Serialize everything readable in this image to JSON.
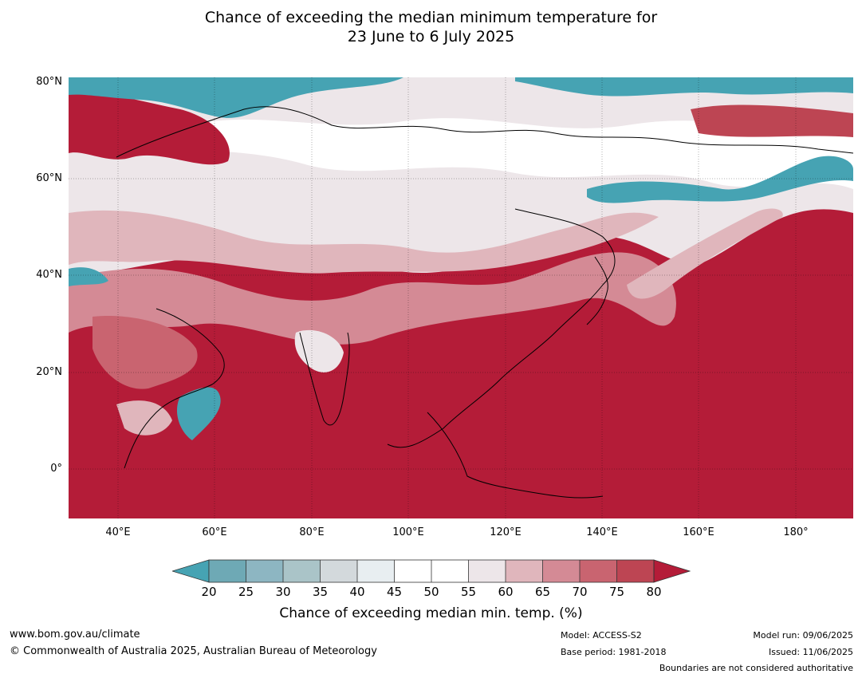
{
  "title": {
    "line1": "Chance of exceeding the median minimum temperature for",
    "line2": "23 June to 6 July 2025"
  },
  "map": {
    "lat_labels": [
      "80°N",
      "60°N",
      "40°N",
      "20°N",
      "0°"
    ],
    "lon_labels": [
      "40°E",
      "60°E",
      "80°E",
      "100°E",
      "120°E",
      "140°E",
      "160°E",
      "180°"
    ],
    "colors": {
      "c20": "#46a3b3",
      "c25": "#6ea9b5",
      "c30": "#8db6c2",
      "c35": "#aac4c8",
      "c40": "#d3d9dc",
      "c45": "#e8eef1",
      "c50": "#ffffff",
      "c55": "#ffffff",
      "c60": "#ede6e9",
      "c65": "#e0b6bc",
      "c70": "#d48a95",
      "c75": "#c96470",
      "c80": "#bd4553",
      "c_max": "#b41c38"
    }
  },
  "colorbar": {
    "ticks": [
      "20",
      "25",
      "30",
      "35",
      "40",
      "45",
      "50",
      "55",
      "60",
      "65",
      "70",
      "75",
      "80"
    ],
    "label": "Chance of exceeding median min. temp. (%)"
  },
  "footer": {
    "website": "www.bom.gov.au/climate",
    "copyright": "© Commonwealth of Australia 2025, Australian Bureau of Meteorology",
    "model": "Model: ACCESS-S2",
    "base_period": "Base period: 1981-2018",
    "model_run": "Model run: 09/06/2025",
    "issued": "Issued: 11/06/2025",
    "disclaimer": "Boundaries are not considered authoritative"
  }
}
